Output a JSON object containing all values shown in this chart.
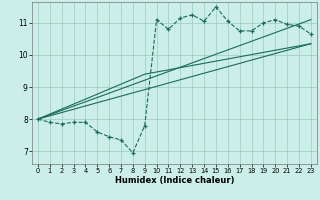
{
  "xlabel": "Humidex (Indice chaleur)",
  "bg_color": "#cceee8",
  "grid_color": "#99ccbb",
  "line_color": "#1a6b5a",
  "xlim": [
    -0.5,
    23.5
  ],
  "ylim": [
    6.6,
    11.65
  ],
  "xticks": [
    0,
    1,
    2,
    3,
    4,
    5,
    6,
    7,
    8,
    9,
    10,
    11,
    12,
    13,
    14,
    15,
    16,
    17,
    18,
    19,
    20,
    21,
    22,
    23
  ],
  "yticks": [
    7,
    8,
    9,
    10,
    11
  ],
  "curve_x": [
    0,
    1,
    2,
    3,
    4,
    5,
    6,
    7,
    8,
    9,
    10,
    11,
    12,
    13,
    14,
    15,
    16,
    17,
    18,
    19,
    20,
    21,
    22,
    23
  ],
  "curve_y": [
    8.0,
    7.9,
    7.85,
    7.9,
    7.9,
    7.6,
    7.45,
    7.35,
    6.95,
    7.8,
    11.1,
    10.8,
    11.15,
    11.25,
    11.05,
    11.5,
    11.05,
    10.75,
    10.75,
    11.0,
    11.1,
    10.95,
    10.9,
    10.65
  ],
  "line1_x": [
    0,
    23
  ],
  "line1_y": [
    8.0,
    10.35
  ],
  "line2_x": [
    0,
    23
  ],
  "line2_y": [
    8.0,
    11.1
  ],
  "line3_x": [
    0,
    9,
    23
  ],
  "line3_y": [
    8.0,
    9.4,
    10.35
  ]
}
